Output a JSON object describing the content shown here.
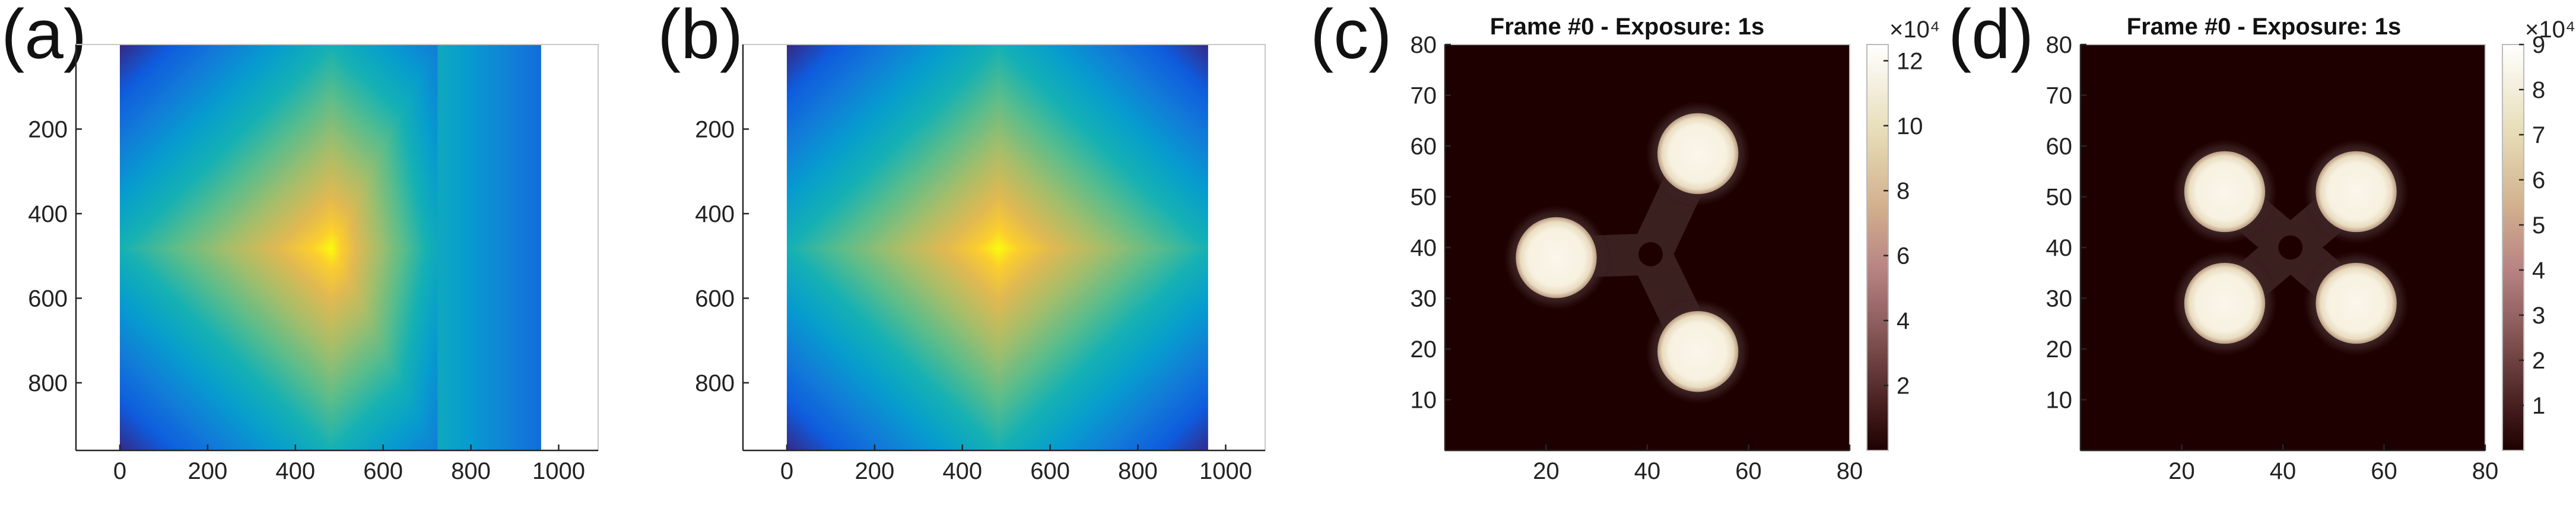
{
  "chart_data": [
    {
      "panel": "(a)",
      "type": "heatmap",
      "title": "",
      "xlabel": "",
      "ylabel": "",
      "xlim": [
        -100,
        1090
      ],
      "ylim": [
        0,
        960
      ],
      "y_reversed": true,
      "xticks": [
        0,
        200,
        400,
        600,
        800,
        1000
      ],
      "yticks": [
        200,
        400,
        600,
        800
      ],
      "grid": false,
      "colormap": "parula",
      "image_extent_x": [
        0,
        960
      ],
      "image_extent_y": [
        0,
        960
      ],
      "pattern": "triangle",
      "peak": [
        480,
        480
      ],
      "right_vertex_x": 720
    },
    {
      "panel": "(b)",
      "type": "heatmap",
      "title": "",
      "xlabel": "",
      "ylabel": "",
      "xlim": [
        -100,
        1090
      ],
      "ylim": [
        0,
        960
      ],
      "y_reversed": true,
      "xticks": [
        0,
        200,
        400,
        600,
        800,
        1000
      ],
      "yticks": [
        200,
        400,
        600,
        800
      ],
      "grid": false,
      "colormap": "parula",
      "image_extent_x": [
        0,
        960
      ],
      "image_extent_y": [
        0,
        960
      ],
      "pattern": "diamond",
      "peak": [
        480,
        480
      ]
    },
    {
      "panel": "(c)",
      "type": "heatmap",
      "title": "Frame #0 - Exposure: 1s",
      "xlabel": "",
      "ylabel": "",
      "xlim": [
        0,
        80
      ],
      "ylim": [
        0,
        80
      ],
      "xticks": [
        20,
        40,
        60,
        80
      ],
      "yticks": [
        10,
        20,
        30,
        40,
        50,
        60,
        70,
        80
      ],
      "grid": false,
      "colormap": "pink",
      "colorbar": {
        "exponent_label": "×10⁴",
        "range": [
          0,
          12.5
        ],
        "ticks": [
          2,
          4,
          6,
          8,
          10,
          12
        ]
      },
      "spots": [
        {
          "x": 22,
          "y": 38,
          "r": 8
        },
        {
          "x": 50,
          "y": 58.5,
          "r": 8
        },
        {
          "x": 50,
          "y": 19.5,
          "r": 8
        }
      ]
    },
    {
      "panel": "(d)",
      "type": "heatmap",
      "title": "Frame #0 - Exposure: 1s",
      "xlabel": "",
      "ylabel": "",
      "xlim": [
        0,
        80
      ],
      "ylim": [
        0,
        80
      ],
      "xticks": [
        20,
        40,
        60,
        80
      ],
      "yticks": [
        10,
        20,
        30,
        40,
        50,
        60,
        70,
        80
      ],
      "grid": false,
      "colormap": "pink",
      "colorbar": {
        "exponent_label": "×10⁴",
        "range": [
          0,
          9
        ],
        "ticks": [
          1,
          2,
          3,
          4,
          5,
          6,
          7,
          8,
          9
        ]
      },
      "spots": [
        {
          "x": 28.5,
          "y": 51,
          "r": 8
        },
        {
          "x": 54.5,
          "y": 51,
          "r": 8
        },
        {
          "x": 28.5,
          "y": 29,
          "r": 8
        },
        {
          "x": 54.5,
          "y": 29,
          "r": 8
        }
      ]
    }
  ]
}
